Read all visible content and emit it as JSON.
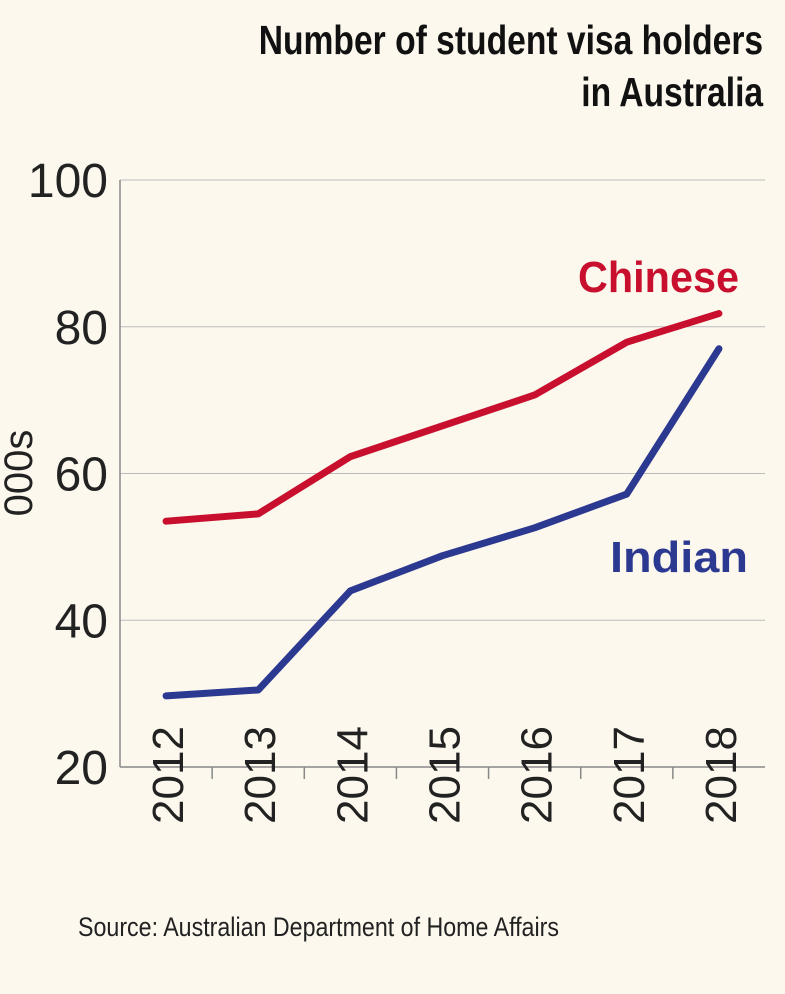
{
  "chart_data": {
    "type": "line",
    "title": "Number of student visa holders in Australia",
    "title_lines": [
      "Number of student visa holders",
      "in Australia"
    ],
    "ylabel": "000s",
    "xlabel": "",
    "ylim": [
      20,
      100
    ],
    "yticks": [
      "20",
      "40",
      "60",
      "80",
      "100"
    ],
    "grid": "horizontal",
    "categories": [
      "2012",
      "2013",
      "2014",
      "2015",
      "2016",
      "2017",
      "2018"
    ],
    "series": [
      {
        "name": "Chinese",
        "color": "#c8102e",
        "values": [
          53.5,
          54.5,
          62.3,
          66.5,
          70.7,
          77.9,
          81.8
        ]
      },
      {
        "name": "Indian",
        "color": "#2b3990",
        "values": [
          29.7,
          30.5,
          44.0,
          48.8,
          52.6,
          57.2,
          77.0
        ]
      }
    ],
    "legend": "direct labels",
    "source": "Source: Australian Department of Home Affairs"
  }
}
